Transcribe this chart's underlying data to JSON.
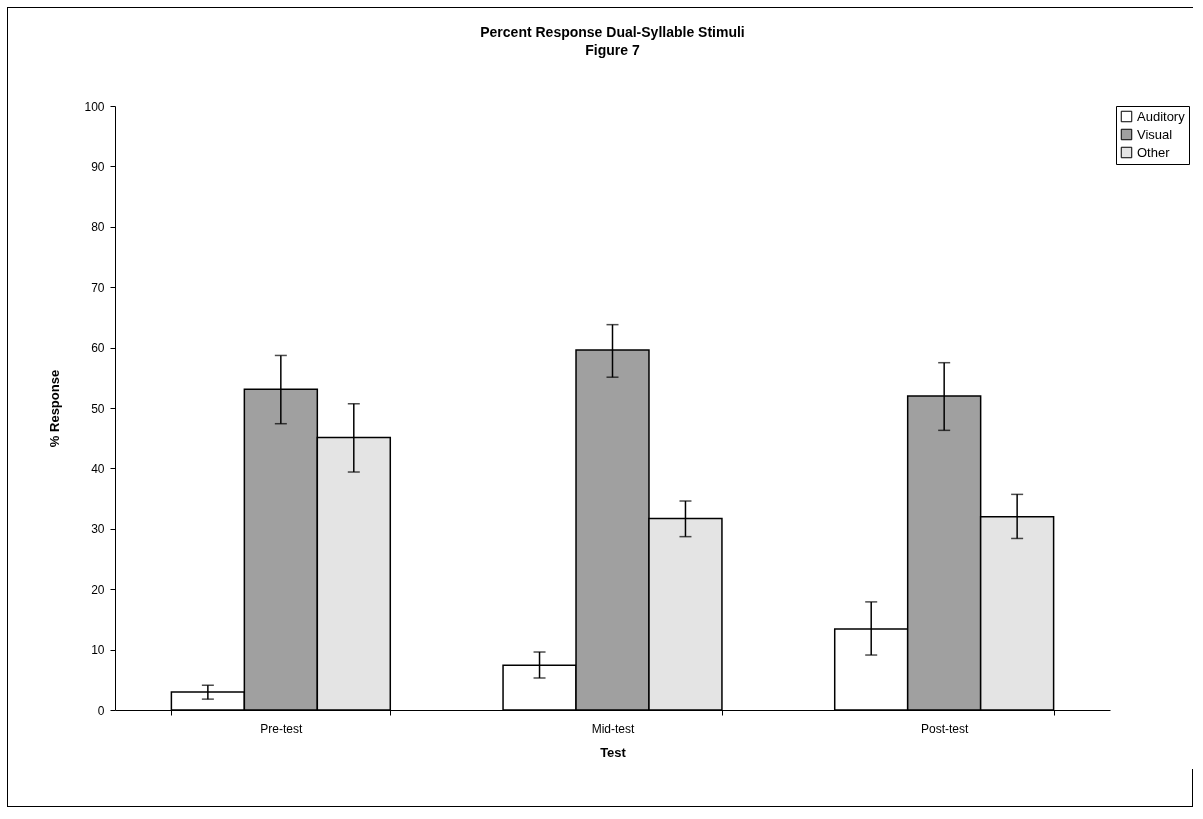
{
  "chart_data": {
    "type": "bar",
    "title": "Percent Response Dual-Syllable Stimuli",
    "subtitle": "Figure 7",
    "xlabel": "Test",
    "ylabel": "% Response",
    "categories": [
      "Pre-test",
      "Mid-test",
      "Post-test"
    ],
    "series": [
      {
        "name": "Auditory",
        "color": "#ffffff",
        "values": [
          3.0,
          7.4,
          13.4
        ],
        "errors": [
          [
            1.8,
            4.1
          ],
          [
            5.3,
            9.6
          ],
          [
            9.1,
            17.9
          ]
        ]
      },
      {
        "name": "Visual",
        "color": "#a0a0a0",
        "values": [
          53.1,
          59.6,
          52.0
        ],
        "errors": [
          [
            47.4,
            58.7
          ],
          [
            55.1,
            63.8
          ],
          [
            46.3,
            57.5
          ]
        ]
      },
      {
        "name": "Other",
        "color": "#e4e4e4",
        "values": [
          45.1,
          31.7,
          32.0
        ],
        "errors": [
          [
            39.4,
            50.7
          ],
          [
            28.7,
            34.6
          ],
          [
            28.4,
            35.7
          ]
        ]
      }
    ],
    "ylim": [
      0,
      100
    ],
    "yticks": [
      0,
      10,
      20,
      30,
      40,
      50,
      60,
      70,
      80,
      90,
      100
    ],
    "grid": false,
    "legend": "right"
  }
}
